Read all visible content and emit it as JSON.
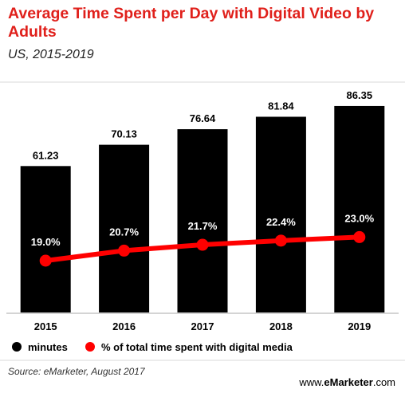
{
  "header": {
    "title": "Average Time Spent per Day with Digital Video by Adults",
    "subtitle": "US, 2015-2019"
  },
  "footer": {
    "source": "Source: eMarketer, August 2017",
    "brand_prefix": "www.",
    "brand_name": "eMarketer",
    "brand_suffix": ".com"
  },
  "colors": {
    "bar": "#000000",
    "line": "#ff0000",
    "title": "#e0201b"
  },
  "chart_data": {
    "type": "bar",
    "categories": [
      "2015",
      "2016",
      "2017",
      "2018",
      "2019"
    ],
    "ylim": [
      0,
      100
    ],
    "grid": false,
    "legend_position": "bottom-left",
    "series": [
      {
        "name": "minutes",
        "type": "bar",
        "values": [
          61.23,
          70.13,
          76.64,
          81.84,
          86.35
        ],
        "labels": [
          "61.23",
          "70.13",
          "76.64",
          "81.84",
          "86.35"
        ]
      },
      {
        "name": "% of total time spent with digital media",
        "type": "line",
        "values": [
          19.0,
          20.7,
          21.7,
          22.4,
          23.0
        ],
        "labels": [
          "19.0%",
          "20.7%",
          "21.7%",
          "22.4%",
          "23.0%"
        ]
      }
    ]
  }
}
